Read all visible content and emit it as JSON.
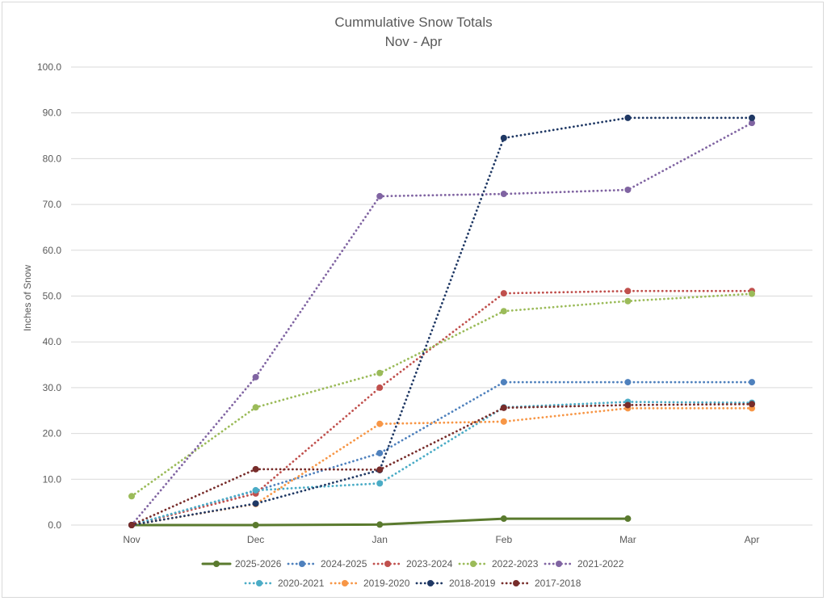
{
  "chart_data": {
    "type": "line",
    "title": "Cummulative Snow Totals",
    "subtitle": "Nov - Apr",
    "xlabel": "",
    "ylabel": "Inches of Snow",
    "ylim": [
      0,
      100
    ],
    "y_ticks": [
      "0.0",
      "10.0",
      "20.0",
      "30.0",
      "40.0",
      "50.0",
      "60.0",
      "70.0",
      "80.0",
      "90.0",
      "100.0"
    ],
    "categories": [
      "Nov",
      "Dec",
      "Jan",
      "Feb",
      "Mar",
      "Apr"
    ],
    "grid": true,
    "legend_position": "bottom",
    "series": [
      {
        "name": "2025-2026",
        "color": "#5a7a2e",
        "style": "solid",
        "values": [
          0.0,
          0.0,
          0.1,
          1.4,
          1.4,
          null
        ]
      },
      {
        "name": "2024-2025",
        "color": "#4f81bd",
        "style": "dotted",
        "values": [
          0.0,
          7.5,
          15.7,
          31.2,
          31.2,
          31.2
        ]
      },
      {
        "name": "2023-2024",
        "color": "#c0504d",
        "style": "dotted",
        "values": [
          0.0,
          6.9,
          30.0,
          50.6,
          51.1,
          51.1
        ]
      },
      {
        "name": "2022-2023",
        "color": "#9bbb59",
        "style": "dotted",
        "values": [
          6.3,
          25.7,
          33.2,
          46.7,
          48.9,
          50.5
        ]
      },
      {
        "name": "2021-2022",
        "color": "#8064a2",
        "style": "dotted",
        "values": [
          0.0,
          32.3,
          71.8,
          72.3,
          73.2,
          87.8
        ]
      },
      {
        "name": "2020-2021",
        "color": "#4bacc6",
        "style": "dotted",
        "values": [
          0.0,
          7.6,
          9.1,
          25.7,
          26.9,
          26.7
        ]
      },
      {
        "name": "2019-2020",
        "color": "#f79646",
        "style": "dotted",
        "values": [
          0.0,
          4.6,
          22.1,
          22.6,
          25.5,
          25.5
        ]
      },
      {
        "name": "2018-2019",
        "color": "#1f3864",
        "style": "dotted",
        "values": [
          0.0,
          4.7,
          12.0,
          84.5,
          88.9,
          88.9
        ]
      },
      {
        "name": "2017-2018",
        "color": "#772c2a",
        "style": "dotted",
        "values": [
          0.0,
          12.2,
          12.1,
          25.6,
          26.2,
          26.4
        ]
      }
    ]
  }
}
